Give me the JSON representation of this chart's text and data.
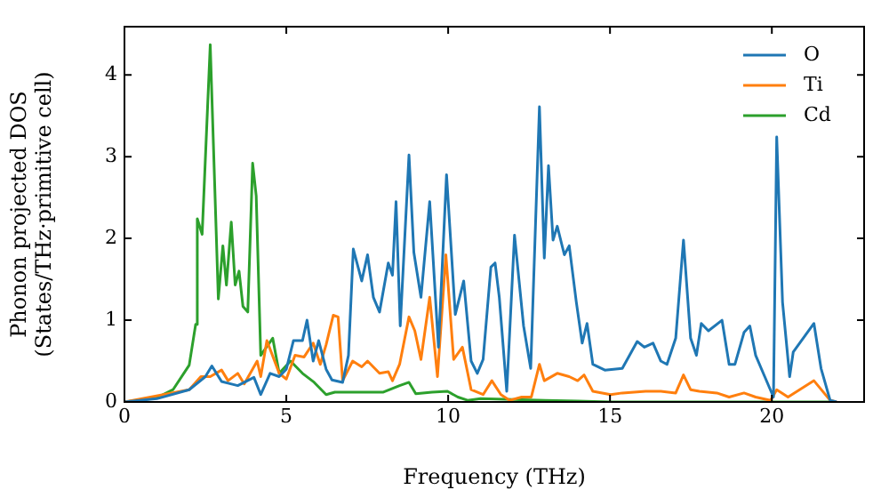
{
  "chart_data": {
    "type": "line",
    "xlabel": "Frequency (THz)",
    "ylabel": "Phonon projected DOS\n(States/THz·primitive cell)",
    "xlim": [
      0,
      22.85
    ],
    "ylim": [
      0,
      4.59
    ],
    "xticks": [
      0,
      5,
      10,
      15,
      20
    ],
    "yticks": [
      0,
      1,
      2,
      3,
      4
    ],
    "grid": false,
    "legend": "top right",
    "marker": "none",
    "line_style": "solid",
    "series": [
      {
        "name": "O",
        "color": "#1f77b4",
        "x": [
          0,
          1,
          2,
          2.5,
          2.7,
          3,
          3.5,
          4,
          4.21,
          4.5,
          4.78,
          5.0,
          5.22,
          5.5,
          5.64,
          5.83,
          6.0,
          6.23,
          6.41,
          6.74,
          6.92,
          7.07,
          7.33,
          7.51,
          7.69,
          7.88,
          8.15,
          8.28,
          8.39,
          8.52,
          8.79,
          8.94,
          9.16,
          9.43,
          9.7,
          9.95,
          10.22,
          10.48,
          10.71,
          10.9,
          11.08,
          11.32,
          11.45,
          11.58,
          11.81,
          12.05,
          12.33,
          12.55,
          12.82,
          12.97,
          13.1,
          13.24,
          13.37,
          13.59,
          13.74,
          13.96,
          14.14,
          14.29,
          14.47,
          14.84,
          15.38,
          15.84,
          16.06,
          16.33,
          16.57,
          16.76,
          17.03,
          17.27,
          17.49,
          17.67,
          17.82,
          18.04,
          18.46,
          18.68,
          18.86,
          19.14,
          19.32,
          19.5,
          19.78,
          20.05,
          20.15,
          20.33,
          20.55,
          20.66,
          21.3,
          21.52,
          21.8,
          22
        ],
        "values": [
          0,
          0.04,
          0.15,
          0.31,
          0.44,
          0.25,
          0.2,
          0.3,
          0.09,
          0.35,
          0.31,
          0.4,
          0.75,
          0.75,
          1.0,
          0.5,
          0.75,
          0.4,
          0.27,
          0.24,
          0.57,
          1.87,
          1.48,
          1.8,
          1.28,
          1.1,
          1.7,
          1.55,
          2.45,
          0.93,
          3.02,
          1.83,
          1.28,
          2.45,
          0.67,
          2.78,
          1.07,
          1.48,
          0.5,
          0.35,
          0.52,
          1.65,
          1.7,
          1.28,
          0.13,
          2.04,
          0.93,
          0.41,
          3.61,
          1.76,
          2.89,
          1.98,
          2.15,
          1.8,
          1.91,
          1.22,
          0.72,
          0.96,
          0.46,
          0.39,
          0.41,
          0.74,
          0.67,
          0.72,
          0.5,
          0.46,
          0.78,
          1.98,
          0.78,
          0.57,
          0.96,
          0.87,
          1.0,
          0.46,
          0.46,
          0.85,
          0.93,
          0.57,
          0.31,
          0.06,
          3.24,
          1.22,
          0.31,
          0.61,
          0.96,
          0.41,
          0.02,
          0
        ]
      },
      {
        "name": "Ti",
        "color": "#ff7f0e",
        "x": [
          0,
          2,
          2.36,
          2.65,
          3.0,
          3.2,
          3.5,
          3.7,
          4.1,
          4.21,
          4.4,
          4.78,
          5.0,
          5.27,
          5.55,
          5.83,
          6.05,
          6.23,
          6.45,
          6.6,
          6.74,
          7.05,
          7.33,
          7.51,
          7.88,
          8.15,
          8.28,
          8.5,
          8.79,
          8.97,
          9.16,
          9.43,
          9.67,
          9.93,
          10.17,
          10.44,
          10.71,
          11.08,
          11.35,
          11.63,
          11.9,
          12.27,
          12.57,
          12.82,
          12.97,
          13.37,
          13.74,
          14.0,
          14.2,
          14.47,
          15.02,
          15.38,
          16.1,
          16.57,
          17.03,
          17.27,
          17.49,
          17.76,
          18.3,
          18.68,
          19.14,
          19.5,
          19.96,
          20.15,
          20.5,
          21.3,
          21.8,
          22
        ],
        "values": [
          0,
          0.15,
          0.31,
          0.31,
          0.39,
          0.26,
          0.35,
          0.22,
          0.5,
          0.31,
          0.75,
          0.35,
          0.28,
          0.57,
          0.55,
          0.72,
          0.46,
          0.7,
          1.06,
          1.04,
          0.26,
          0.5,
          0.43,
          0.5,
          0.35,
          0.37,
          0.26,
          0.46,
          1.04,
          0.87,
          0.52,
          1.28,
          0.31,
          1.8,
          0.52,
          0.67,
          0.15,
          0.09,
          0.26,
          0.09,
          0.02,
          0.06,
          0.06,
          0.46,
          0.26,
          0.35,
          0.31,
          0.26,
          0.33,
          0.13,
          0.09,
          0.11,
          0.13,
          0.13,
          0.11,
          0.33,
          0.15,
          0.13,
          0.11,
          0.06,
          0.11,
          0.06,
          0.02,
          0.15,
          0.06,
          0.26,
          0.02,
          0
        ]
      },
      {
        "name": "Cd",
        "color": "#2ca02c",
        "x": [
          0,
          1,
          1.5,
          2,
          2.2,
          2.25,
          2.4,
          2.65,
          2.9,
          3.04,
          3.15,
          3.3,
          3.42,
          3.54,
          3.66,
          3.81,
          3.96,
          4.07,
          4.21,
          4.58,
          4.78,
          5.13,
          5.5,
          5.86,
          6.23,
          6.5,
          7,
          8,
          8.5,
          8.79,
          9,
          9.5,
          9.98,
          10.3,
          10.6,
          11,
          12,
          13,
          14,
          15,
          22
        ],
        "values": [
          0,
          0.05,
          0.15,
          0.45,
          0.95,
          2.24,
          2.05,
          4.37,
          1.26,
          1.91,
          1.43,
          2.2,
          1.43,
          1.6,
          1.17,
          1.1,
          2.92,
          2.52,
          0.57,
          0.78,
          0.35,
          0.5,
          0.35,
          0.24,
          0.09,
          0.12,
          0.12,
          0.12,
          0.2,
          0.24,
          0.1,
          0.12,
          0.13,
          0.06,
          0.02,
          0.04,
          0.03,
          0.02,
          0.01,
          0,
          0
        ]
      }
    ]
  }
}
